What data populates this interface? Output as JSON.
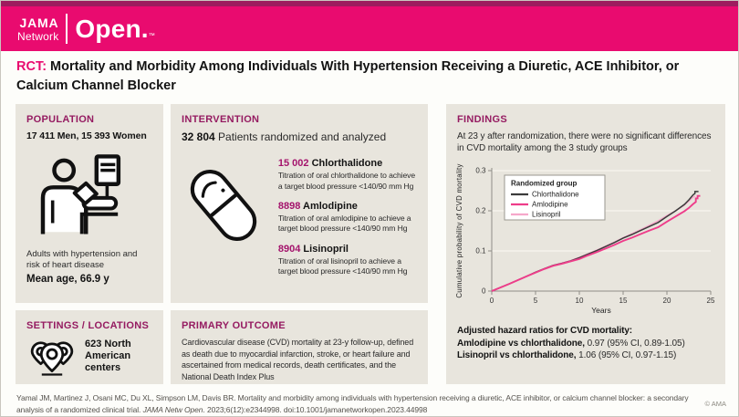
{
  "brand": {
    "jama": "JAMA",
    "network": "Network",
    "open": "Open.",
    "tm": "™"
  },
  "title": {
    "tag": "RCT:",
    "text": " Mortality and Morbidity Among Individuals With Hypertension Receiving a Diuretic, ACE Inhibitor, or Calcium Channel Blocker"
  },
  "population": {
    "header": "POPULATION",
    "count": "17 411 Men, 15 393 Women",
    "description": "Adults with hypertension and risk of heart disease",
    "mean_age": "Mean age, 66.9 y",
    "icon": "patient-blood-pressure-icon"
  },
  "intervention": {
    "header": "INTERVENTION",
    "count": "32 804",
    "count_suffix": " Patients randomized and analyzed",
    "icon": "pill-icon",
    "arms": [
      {
        "n": "15 002",
        "name": " Chlorthalidone",
        "description": "Titration of oral chlorthalidone to achieve a target blood pressure <140/90 mm Hg"
      },
      {
        "n": "8898",
        "name": " Amlodipine",
        "description": "Titration of oral amlodipine to achieve a target blood pressure <140/90 mm Hg"
      },
      {
        "n": "8904",
        "name": " Lisinopril",
        "description": "Titration of oral lisinopril to achieve a target blood pressure <140/90 mm Hg"
      }
    ]
  },
  "settings": {
    "header": "SETTINGS / LOCATIONS",
    "text": "623 North American centers",
    "icon": "map-pins-icon"
  },
  "primary_outcome": {
    "header": "PRIMARY OUTCOME",
    "text": "Cardiovascular disease (CVD) mortality at 23-y follow-up, defined as death due to myocardial infarction, stroke, or heart failure and ascertained from medical records, death certificates, and the National Death Index Plus"
  },
  "findings": {
    "header": "FINDINGS",
    "summary": "At 23 y after randomization, there were no significant differences in CVD mortality among the 3 study groups",
    "hazard": {
      "title": "Adjusted hazard ratios for CVD mortality:",
      "rows": [
        {
          "label": "Amlodipine vs chlorthalidone,",
          "value": " 0.97 (95% CI, 0.89-1.05)"
        },
        {
          "label": "Lisinopril vs chlorthalidone,",
          "value": " 1.06 (95% CI, 0.97-1.15)"
        }
      ]
    }
  },
  "chart_data": {
    "type": "line",
    "xlabel": "Years",
    "ylabel": "Cumulative probability of CVD mortality",
    "xlim": [
      0,
      25
    ],
    "ylim": [
      0,
      0.3
    ],
    "xticks": [
      0,
      5,
      10,
      15,
      20,
      25
    ],
    "yticks": [
      0,
      0.1,
      0.2,
      0.3
    ],
    "grid": "horizontal",
    "legend_title": "Randomized group",
    "legend_position": "top-left",
    "series": [
      {
        "name": "Chlorthalidone",
        "color": "#3b3b3b",
        "points": [
          [
            0,
            0
          ],
          [
            2,
            0.018
          ],
          [
            4,
            0.037
          ],
          [
            5,
            0.047
          ],
          [
            6,
            0.056
          ],
          [
            7,
            0.064
          ],
          [
            8,
            0.069
          ],
          [
            9,
            0.075
          ],
          [
            10,
            0.083
          ],
          [
            11,
            0.092
          ],
          [
            12,
            0.101
          ],
          [
            13,
            0.111
          ],
          [
            14,
            0.121
          ],
          [
            15,
            0.132
          ],
          [
            16,
            0.141
          ],
          [
            17,
            0.151
          ],
          [
            18,
            0.161
          ],
          [
            19,
            0.171
          ],
          [
            20,
            0.186
          ],
          [
            21,
            0.2
          ],
          [
            22,
            0.216
          ],
          [
            22.5,
            0.227
          ],
          [
            23,
            0.24
          ],
          [
            23.2,
            0.243
          ],
          [
            23.2,
            0.248
          ],
          [
            23.6,
            0.248
          ]
        ]
      },
      {
        "name": "Amlodipine",
        "color": "#ee3d8a",
        "points": [
          [
            0,
            0
          ],
          [
            2,
            0.018
          ],
          [
            4,
            0.037
          ],
          [
            5,
            0.046
          ],
          [
            6,
            0.055
          ],
          [
            7,
            0.063
          ],
          [
            8,
            0.068
          ],
          [
            9,
            0.074
          ],
          [
            10,
            0.08
          ],
          [
            11,
            0.089
          ],
          [
            12,
            0.097
          ],
          [
            13,
            0.106
          ],
          [
            14,
            0.115
          ],
          [
            15,
            0.125
          ],
          [
            16,
            0.133
          ],
          [
            17,
            0.142
          ],
          [
            18,
            0.151
          ],
          [
            19,
            0.159
          ],
          [
            20,
            0.173
          ],
          [
            21,
            0.186
          ],
          [
            22,
            0.199
          ],
          [
            22.5,
            0.207
          ],
          [
            23,
            0.217
          ],
          [
            23.3,
            0.222
          ],
          [
            23.3,
            0.231
          ],
          [
            23.5,
            0.231
          ],
          [
            23.5,
            0.237
          ],
          [
            23.8,
            0.237
          ]
        ]
      },
      {
        "name": "Lisinopril",
        "color": "#f6a8cb",
        "points": [
          [
            0,
            0
          ],
          [
            2,
            0.018
          ],
          [
            4,
            0.037
          ],
          [
            5,
            0.047
          ],
          [
            6,
            0.056
          ],
          [
            7,
            0.064
          ],
          [
            8,
            0.07
          ],
          [
            9,
            0.076
          ],
          [
            10,
            0.084
          ],
          [
            11,
            0.093
          ],
          [
            12,
            0.102
          ],
          [
            13,
            0.112
          ],
          [
            14,
            0.122
          ],
          [
            15,
            0.133
          ],
          [
            16,
            0.143
          ],
          [
            17,
            0.153
          ],
          [
            18,
            0.164
          ],
          [
            19,
            0.175
          ],
          [
            20,
            0.188
          ],
          [
            21,
            0.2
          ],
          [
            22,
            0.214
          ],
          [
            22.5,
            0.224
          ],
          [
            23,
            0.234
          ],
          [
            23.2,
            0.237
          ]
        ]
      }
    ]
  },
  "footer": {
    "citation_pre": "Yamal JM, Martinez J, Osani MC, Du XL, Simpson LM, Davis BR. Mortality and morbidity among individuals with hypertension receiving a diuretic, ACE inhibitor, or calcium channel blocker: a secondary analysis of a randomized clinical trial. ",
    "citation_journal": "JAMA Netw Open",
    "citation_post": ". 2023;6(12):e2344998. doi:10.1001/jamanetworkopen.2023.44998",
    "copyright": "© AMA"
  },
  "colors": {
    "banner_pink": "#e90b6f",
    "top_stripe": "#9d1c5e",
    "section_header": "#951b61",
    "arm_number": "#a4136c",
    "panel_background": "#e8e5dd",
    "chlorthalidone_line": "#3b3b3b",
    "amlodipine_line": "#ee3d8a",
    "lisinopril_line": "#f6a8cb"
  }
}
